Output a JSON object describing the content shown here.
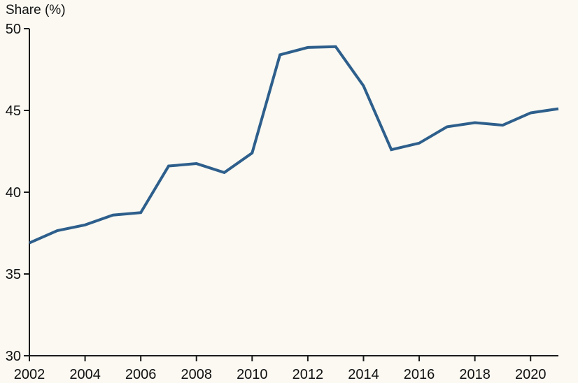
{
  "page": {
    "background_color": "#fbf9f2"
  },
  "chart": {
    "title": "Share (%)",
    "line_color": "#2e5f8c",
    "axis_color": "#1a1a1a",
    "text_color": "#111111"
  },
  "chart_data": {
    "type": "line",
    "title": "Share (%)",
    "x": [
      2002,
      2003,
      2004,
      2005,
      2006,
      2007,
      2008,
      2009,
      2010,
      2011,
      2012,
      2013,
      2014,
      2015,
      2016,
      2017,
      2018,
      2019,
      2020,
      2021
    ],
    "series": [
      {
        "name": "Share (%)",
        "values": [
          36.9,
          37.65,
          38.0,
          38.6,
          38.75,
          41.6,
          41.75,
          41.2,
          42.4,
          48.4,
          48.85,
          48.9,
          46.5,
          42.6,
          43.0,
          44.0,
          44.25,
          44.1,
          44.85,
          45.1
        ]
      }
    ],
    "xlabel": "",
    "ylabel": "Share (%)",
    "xlim": [
      2002,
      2021
    ],
    "ylim": [
      30,
      50
    ],
    "xticks": [
      2002,
      2004,
      2006,
      2008,
      2010,
      2012,
      2014,
      2016,
      2018,
      2020
    ],
    "yticks": [
      30,
      35,
      40,
      45,
      50
    ],
    "grid": false,
    "legend": "none"
  }
}
